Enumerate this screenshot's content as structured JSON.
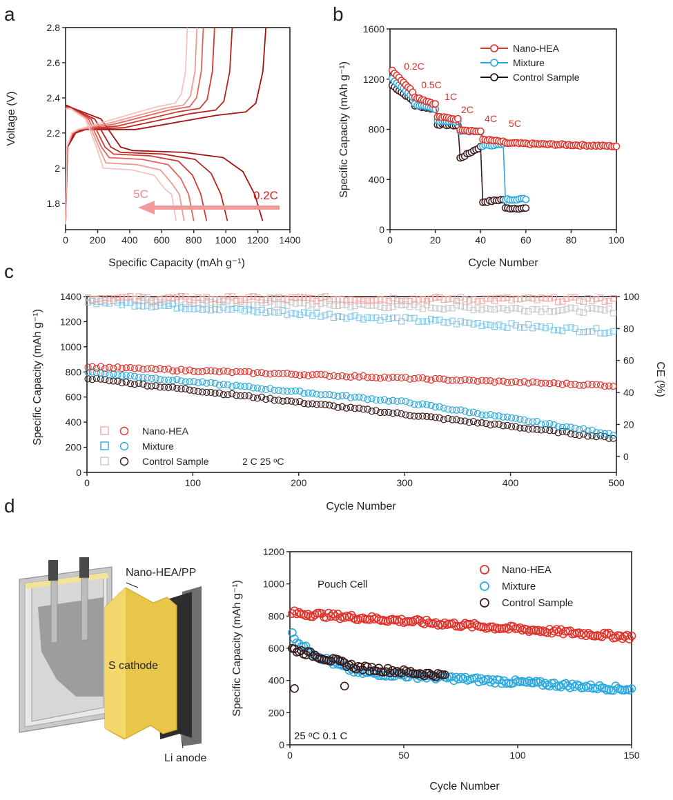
{
  "panels": {
    "a": "a",
    "b": "b",
    "c": "c",
    "d": "d"
  },
  "colors": {
    "nano": "#e0322a",
    "nano_light": "#f2a7a3",
    "mixture": "#2aa8e0",
    "mixture_light": "#80c6ea",
    "control": "#3a1a1a",
    "control_light": "#c8c8c8"
  },
  "chart_data": [
    {
      "id": "a",
      "type": "line",
      "xlabel": "Specific Capacity (mAh g⁻¹)",
      "ylabel": "Voltage (V)",
      "xlim": [
        0,
        1400
      ],
      "ylim": [
        1.65,
        2.8
      ],
      "xticks": [
        0,
        200,
        400,
        600,
        800,
        1000,
        1200,
        1400
      ],
      "yticks": [
        1.8,
        2.0,
        2.2,
        2.4,
        2.6,
        2.8
      ],
      "arrow_left_label": "5C",
      "arrow_right_label": "0.2C",
      "series": [
        {
          "name": "0.2C",
          "discharge_cap": 1230,
          "charge_cap": 1250,
          "lower_plateau": 2.1,
          "upper_plateau": 2.3
        },
        {
          "name": "0.5C",
          "discharge_cap": 1010,
          "charge_cap": 1040,
          "lower_plateau": 2.09,
          "upper_plateau": 2.31
        },
        {
          "name": "1C",
          "discharge_cap": 880,
          "charge_cap": 930,
          "lower_plateau": 2.08,
          "upper_plateau": 2.32
        },
        {
          "name": "2C",
          "discharge_cap": 800,
          "charge_cap": 860,
          "lower_plateau": 2.06,
          "upper_plateau": 2.33
        },
        {
          "name": "4C",
          "discharge_cap": 740,
          "charge_cap": 820,
          "lower_plateau": 2.03,
          "upper_plateau": 2.34
        },
        {
          "name": "5C",
          "discharge_cap": 690,
          "charge_cap": 760,
          "lower_plateau": 2.0,
          "upper_plateau": 2.35
        }
      ]
    },
    {
      "id": "b",
      "type": "scatter",
      "xlabel": "Cycle Number",
      "ylabel": "Specific Capacity (mAh g⁻¹)",
      "xlim": [
        0,
        100
      ],
      "ylim": [
        0,
        1600
      ],
      "xticks": [
        0,
        20,
        40,
        60,
        80,
        100
      ],
      "yticks": [
        0,
        400,
        800,
        1200,
        1600
      ],
      "rate_labels": [
        "0.2C",
        "0.5C",
        "1C",
        "2C",
        "4C",
        "5C"
      ],
      "series": [
        {
          "name": "Nano-HEA",
          "segments": [
            [
              1,
              10,
              1270,
              1100
            ],
            [
              11,
              20,
              1060,
              1000
            ],
            [
              21,
              30,
              900,
              880
            ],
            [
              31,
              40,
              800,
              780
            ],
            [
              41,
              50,
              720,
              700
            ],
            [
              51,
              100,
              690,
              665
            ]
          ]
        },
        {
          "name": "Mixture",
          "segments": [
            [
              1,
              10,
              1200,
              1060
            ],
            [
              11,
              20,
              1000,
              960
            ],
            [
              21,
              30,
              870,
              860
            ],
            [
              31,
              40,
              790,
              780
            ],
            [
              41,
              50,
              670,
              680
            ],
            [
              51,
              60,
              240,
              245
            ]
          ]
        },
        {
          "name": "Control Sample",
          "segments": [
            [
              1,
              10,
              1150,
              1030
            ],
            [
              11,
              20,
              990,
              960
            ],
            [
              21,
              30,
              840,
              830
            ],
            [
              31,
              40,
              570,
              660
            ],
            [
              41,
              50,
              220,
              240
            ],
            [
              51,
              60,
              170,
              170
            ]
          ]
        }
      ]
    },
    {
      "id": "c",
      "type": "scatter",
      "xlabel": "Cycle Number",
      "ylabel": "Specific Capacity (mAh g⁻¹)",
      "y2label": "CE (%)",
      "xlim": [
        0,
        500
      ],
      "ylim": [
        0,
        1400
      ],
      "y2lim": [
        -10,
        100
      ],
      "xticks": [
        0,
        100,
        200,
        300,
        400,
        500
      ],
      "yticks": [
        0,
        200,
        400,
        600,
        800,
        1000,
        1200,
        1400
      ],
      "y2ticks": [
        0,
        20,
        40,
        60,
        80,
        100
      ],
      "annotation": "2 C   25 ᵒC",
      "capacity": [
        {
          "name": "Nano-HEA",
          "start": 840,
          "end": 690
        },
        {
          "name": "Mixture",
          "start": 800,
          "end": 300
        },
        {
          "name": "Control Sample",
          "start": 750,
          "end": 270
        }
      ],
      "ce": [
        {
          "name": "Nano-HEA",
          "start": 99,
          "end": 98
        },
        {
          "name": "Mixture",
          "start": 97,
          "end": 78
        },
        {
          "name": "Control Sample",
          "start": 98,
          "end": 91
        }
      ]
    },
    {
      "id": "d",
      "type": "scatter",
      "xlabel": "Cycle Number",
      "ylabel": "Specific Capacity (mAh g⁻¹)",
      "xlim": [
        0,
        150
      ],
      "ylim": [
        0,
        1200
      ],
      "xticks": [
        0,
        50,
        100,
        150
      ],
      "yticks": [
        0,
        200,
        400,
        600,
        800,
        1000,
        1200
      ],
      "title": "Pouch Cell",
      "annotation": "25 ᵒC    0.1 C",
      "series": [
        {
          "name": "Nano-HEA",
          "cycles": 150,
          "start": 820,
          "end": 670
        },
        {
          "name": "Mixture",
          "cycles": 150,
          "start": 740,
          "end": 345
        },
        {
          "name": "Control Sample",
          "cycles": 68,
          "start": 600,
          "end": 430
        }
      ]
    }
  ],
  "legend": {
    "nano": "Nano-HEA",
    "mixture": "Mixture",
    "control": "Control Sample"
  },
  "schematic": {
    "separator_label": "Nano-HEA/PP",
    "cathode_label": "S cathode",
    "anode_label": "Li anode"
  }
}
